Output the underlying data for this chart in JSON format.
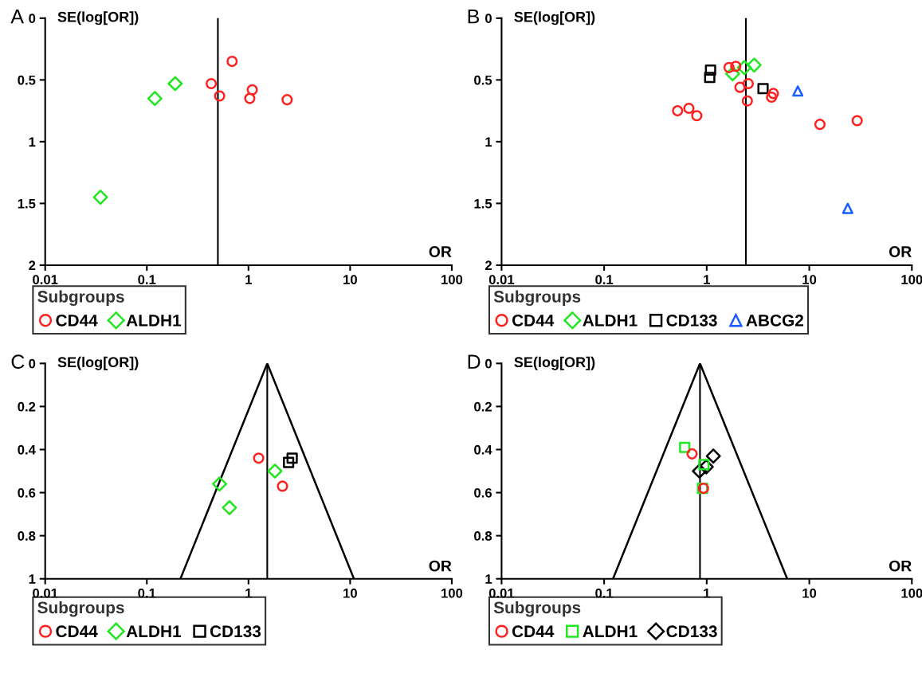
{
  "chart_data": [
    {
      "type": "scatter",
      "title": "A",
      "xlabel": "OR",
      "ylabel": "SE(log[OR])",
      "legend_title": "Subgroups",
      "legend": "bottom",
      "log": "x",
      "grid": false,
      "xlim": [
        0.01,
        100
      ],
      "xticks": [
        0.01,
        0.1,
        1,
        10,
        100
      ],
      "ylim": [
        2,
        0
      ],
      "yticks": [
        0,
        0.5,
        1,
        1.5,
        2
      ],
      "series": [
        {
          "name": "CD44",
          "color": "#ff2020",
          "marker": "circle",
          "x": [
            0.69,
            0.43,
            0.52,
            1.09,
            1.03,
            2.4
          ],
          "values": [
            0.35,
            0.53,
            0.63,
            0.58,
            0.65,
            0.66
          ]
        },
        {
          "name": "ALDH1",
          "color": "#22e622",
          "marker": "diamond",
          "x": [
            0.19,
            0.12,
            0.035
          ],
          "values": [
            0.53,
            0.65,
            1.45
          ]
        }
      ],
      "ref_lines": [
        {
          "axis": "x",
          "value": 0.5,
          "color": "#000000"
        }
      ]
    },
    {
      "type": "scatter",
      "title": "B",
      "xlabel": "OR",
      "ylabel": "SE(log[OR])",
      "legend_title": "Subgroups",
      "legend": "bottom",
      "log": "x",
      "grid": false,
      "xlim": [
        0.01,
        100
      ],
      "xticks": [
        0.01,
        0.1,
        1,
        10,
        100
      ],
      "ylim": [
        2,
        0
      ],
      "yticks": [
        0,
        0.5,
        1,
        1.5,
        2
      ],
      "series": [
        {
          "name": "CD44",
          "color": "#ff2020",
          "marker": "circle",
          "x": [
            0.52,
            0.67,
            0.8,
            1.65,
            1.92,
            2.54,
            2.11,
            2.49,
            4.46,
            4.29,
            12.7,
            29.3
          ],
          "values": [
            0.75,
            0.73,
            0.79,
            0.4,
            0.39,
            0.53,
            0.56,
            0.67,
            0.61,
            0.64,
            0.86,
            0.83
          ]
        },
        {
          "name": "ALDH1",
          "color": "#22e622",
          "marker": "diamond",
          "x": [
            1.79,
            2.33,
            2.9
          ],
          "values": [
            0.45,
            0.4,
            0.38
          ]
        },
        {
          "name": "CD133",
          "color": "#000000",
          "marker": "square",
          "x": [
            1.09,
            1.07,
            3.54
          ],
          "values": [
            0.42,
            0.48,
            0.57
          ]
        },
        {
          "name": "ABCG2",
          "color": "#1a5cff",
          "marker": "triangle",
          "x": [
            7.73,
            23.7
          ],
          "values": [
            0.59,
            1.54
          ]
        }
      ],
      "ref_lines": [
        {
          "axis": "x",
          "value": 2.41,
          "color": "#000000"
        }
      ]
    },
    {
      "type": "scatter",
      "title": "C",
      "xlabel": "OR",
      "ylabel": "SE(log[OR])",
      "legend_title": "Subgroups",
      "legend": "bottom",
      "log": "x",
      "grid": false,
      "xlim": [
        0.01,
        100
      ],
      "xticks": [
        0.01,
        0.1,
        1,
        10,
        100
      ],
      "ylim": [
        1,
        0
      ],
      "yticks": [
        0,
        0.2,
        0.4,
        0.6,
        0.8,
        1
      ],
      "series": [
        {
          "name": "CD44",
          "color": "#ff2020",
          "marker": "circle",
          "x": [
            1.26,
            2.16
          ],
          "values": [
            0.44,
            0.57
          ]
        },
        {
          "name": "ALDH1",
          "color": "#22e622",
          "marker": "diamond",
          "x": [
            1.82,
            0.52,
            0.65
          ],
          "values": [
            0.5,
            0.56,
            0.67
          ]
        },
        {
          "name": "CD133",
          "color": "#000000",
          "marker": "square",
          "x": [
            2.69,
            2.48
          ],
          "values": [
            0.44,
            0.46
          ]
        },
        {
          "type": "line",
          "color": "#000000",
          "marker": "none",
          "x": [
            0.214,
            1.53,
            10.9
          ],
          "values": [
            1,
            0,
            1
          ]
        }
      ],
      "ref_lines": [
        {
          "axis": "x",
          "value": 1.53,
          "color": "#000000"
        }
      ]
    },
    {
      "type": "scatter",
      "title": "D",
      "xlabel": "OR",
      "ylabel": "SE(log[OR])",
      "legend_title": "Subgroups",
      "legend": "bottom",
      "log": "x",
      "grid": false,
      "xlim": [
        0.01,
        100
      ],
      "xticks": [
        0.01,
        0.1,
        1,
        10,
        100
      ],
      "ylim": [
        1,
        0
      ],
      "yticks": [
        0,
        0.2,
        0.4,
        0.6,
        0.8,
        1
      ],
      "series": [
        {
          "name": "CD44",
          "color": "#ff2020",
          "marker": "circle",
          "x": [
            0.72,
            0.93
          ],
          "values": [
            0.42,
            0.58
          ]
        },
        {
          "name": "ALDH1",
          "color": "#22e622",
          "marker": "square",
          "x": [
            0.61,
            0.94,
            0.91
          ],
          "values": [
            0.39,
            0.47,
            0.58
          ]
        },
        {
          "name": "CD133",
          "color": "#000000",
          "marker": "diamond",
          "x": [
            1.16,
            0.99,
            0.85
          ],
          "values": [
            0.43,
            0.48,
            0.5
          ]
        },
        {
          "type": "line",
          "color": "#000000",
          "marker": "none",
          "x": [
            0.122,
            0.86,
            6.09
          ],
          "values": [
            1,
            0,
            1
          ]
        }
      ],
      "ref_lines": [
        {
          "axis": "x",
          "value": 0.86,
          "color": "#000000"
        }
      ]
    }
  ]
}
